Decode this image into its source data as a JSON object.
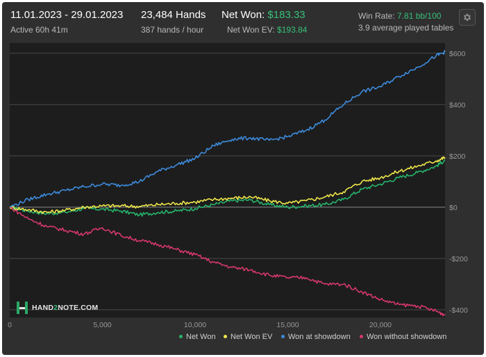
{
  "header": {
    "date_range": "11.01.2023 - 29.01.2023",
    "active_time": "Active 60h 41m",
    "hands": "23,484 Hands",
    "hands_per_hour": "387 hands / hour",
    "net_won_label": "Net Won:",
    "net_won_value": "$183.33",
    "net_won_ev_label": "Net Won  EV:",
    "net_won_ev_value": "$193.84",
    "win_rate_label": "Win Rate:",
    "win_rate_value": "7.81 bb/100",
    "avg_tables": "3.9 average played tables"
  },
  "icons": {
    "settings": "gear-icon"
  },
  "logo": {
    "prefix": "HAND",
    "accent": "2",
    "suffix": "NOTE.COM"
  },
  "colors": {
    "accent_green": "#37c07a",
    "net_won": "#27b36b",
    "net_won_ev": "#f0e74a",
    "showdown": "#3d8bdc",
    "non_showdown": "#d6386a"
  },
  "chart_data": {
    "type": "line",
    "xlim": [
      0,
      23484
    ],
    "ylim": [
      -430,
      640
    ],
    "x_ticks": [
      0,
      5000,
      10000,
      15000,
      20000
    ],
    "x_tick_labels": [
      "0",
      "5,000",
      "10,000",
      "15,000",
      "20,000"
    ],
    "y_ticks": [
      600,
      400,
      200,
      0,
      -200,
      -400
    ],
    "y_tick_labels": [
      "$600",
      "$400",
      "$200",
      "$0",
      "-$200",
      "-$400"
    ],
    "grid": true,
    "legend_position": "bottom-right",
    "x": [
      0,
      1000,
      2000,
      3000,
      4000,
      5000,
      6000,
      7000,
      8000,
      9000,
      10000,
      11000,
      12000,
      13000,
      14000,
      15000,
      16000,
      17000,
      18000,
      19000,
      20000,
      21000,
      22000,
      23000,
      23484
    ],
    "series": [
      {
        "name": "Net Won",
        "color": "#27b36b",
        "values": [
          0,
          -15,
          -25,
          -20,
          -5,
          -8,
          -15,
          -30,
          -20,
          -15,
          -5,
          10,
          25,
          28,
          10,
          0,
          5,
          10,
          30,
          70,
          90,
          115,
          135,
          160,
          183
        ]
      },
      {
        "name": "Net Won  EV",
        "color": "#f0e74a",
        "values": [
          0,
          -10,
          -20,
          -12,
          0,
          5,
          5,
          3,
          10,
          15,
          20,
          30,
          35,
          40,
          25,
          15,
          25,
          40,
          60,
          100,
          115,
          140,
          160,
          180,
          194
        ]
      },
      {
        "name": "Won at showdown",
        "color": "#3d8bdc",
        "values": [
          0,
          30,
          50,
          65,
          80,
          90,
          85,
          100,
          140,
          165,
          190,
          240,
          265,
          270,
          260,
          275,
          300,
          340,
          400,
          450,
          470,
          510,
          545,
          590,
          605
        ]
      },
      {
        "name": "Won without showdown",
        "color": "#d6386a",
        "values": [
          0,
          -45,
          -75,
          -90,
          -105,
          -80,
          -110,
          -130,
          -145,
          -165,
          -185,
          -215,
          -235,
          -245,
          -265,
          -275,
          -275,
          -300,
          -300,
          -330,
          -360,
          -380,
          -385,
          -405,
          -420
        ]
      }
    ]
  }
}
